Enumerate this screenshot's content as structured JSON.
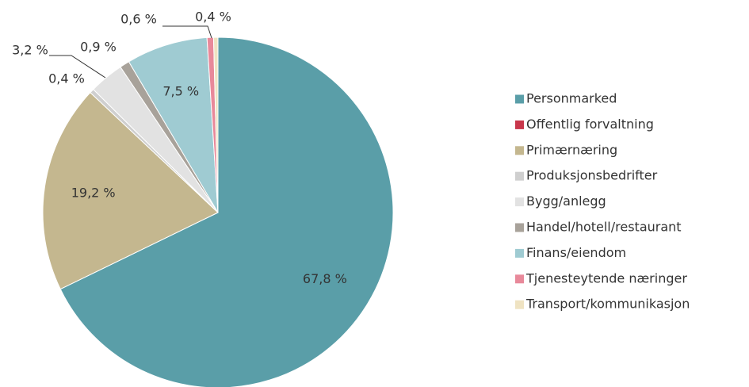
{
  "chart_data": {
    "type": "pie",
    "categories": [
      "Personmarked",
      "Offentlig forvaltning",
      "Primærnæring",
      "Produksjonsbedrifter",
      "Bygg/anlegg",
      "Handel/hotell/restaurant",
      "Finans/eiendom",
      "Tjenesteytende næringer",
      "Transport/kommunikasjon"
    ],
    "values": [
      67.8,
      0,
      19.2,
      0.4,
      3.2,
      0.9,
      7.5,
      0.6,
      0.4
    ],
    "value_labels": [
      "67,8 %",
      null,
      "19,2 %",
      "0,4 %",
      "3,2 %",
      "0,9 %",
      "7,5 %",
      "0,6 %",
      "0,4 %"
    ],
    "colors": [
      "#5a9ea8",
      "#c8374b",
      "#c4b78f",
      "#cfcfcf",
      "#e2e2e2",
      "#a8a29a",
      "#9fcbd2",
      "#e8899a",
      "#efe3c2"
    ],
    "legend": "right"
  }
}
